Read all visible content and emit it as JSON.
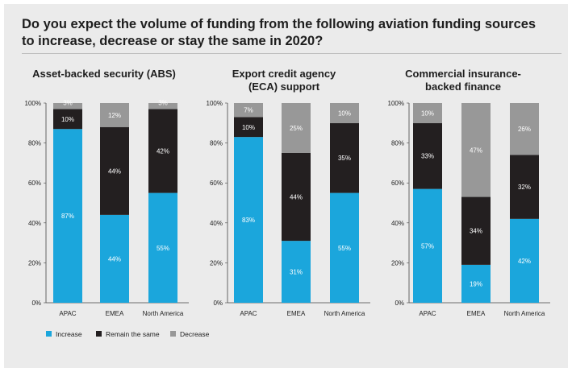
{
  "title": "Do you expect the volume of funding from the following aviation funding sources to increase, decrease or stay the same in 2020?",
  "colors": {
    "increase": "#1ba6dc",
    "remain": "#231f20",
    "decrease": "#989898",
    "background": "#ebebeb"
  },
  "legend": [
    "Increase",
    "Remain the same",
    "Decrease"
  ],
  "chart_data": [
    {
      "type": "bar",
      "stacked": true,
      "title": [
        "Asset-backed security (ABS)"
      ],
      "yticks": [
        "0%",
        "20%",
        "40%",
        "60%",
        "80%",
        "100%"
      ],
      "ylim": [
        0,
        100
      ],
      "categories": [
        "APAC",
        "EMEA",
        "North America"
      ],
      "series": [
        {
          "name": "Increase",
          "values": [
            87,
            44,
            55
          ]
        },
        {
          "name": "Remain the same",
          "values": [
            10,
            44,
            42
          ]
        },
        {
          "name": "Decrease",
          "values": [
            3,
            12,
            3
          ]
        }
      ]
    },
    {
      "type": "bar",
      "stacked": true,
      "title": [
        "Export credit agency",
        "(ECA) support"
      ],
      "yticks": [
        "0%",
        "20%",
        "40%",
        "60%",
        "80%",
        "100%"
      ],
      "ylim": [
        0,
        100
      ],
      "categories": [
        "APAC",
        "EMEA",
        "North America"
      ],
      "series": [
        {
          "name": "Increase",
          "values": [
            83,
            31,
            55
          ]
        },
        {
          "name": "Remain the same",
          "values": [
            10,
            44,
            35
          ]
        },
        {
          "name": "Decrease",
          "values": [
            7,
            25,
            10
          ]
        }
      ]
    },
    {
      "type": "bar",
      "stacked": true,
      "title": [
        "Commercial insurance-",
        "backed finance"
      ],
      "yticks": [
        "0%",
        "20%",
        "40%",
        "60%",
        "80%",
        "100%"
      ],
      "ylim": [
        0,
        100
      ],
      "categories": [
        "APAC",
        "EMEA",
        "North America"
      ],
      "series": [
        {
          "name": "Increase",
          "values": [
            57,
            19,
            42
          ]
        },
        {
          "name": "Remain the same",
          "values": [
            33,
            34,
            32
          ]
        },
        {
          "name": "Decrease",
          "values": [
            10,
            47,
            26
          ]
        }
      ]
    }
  ]
}
